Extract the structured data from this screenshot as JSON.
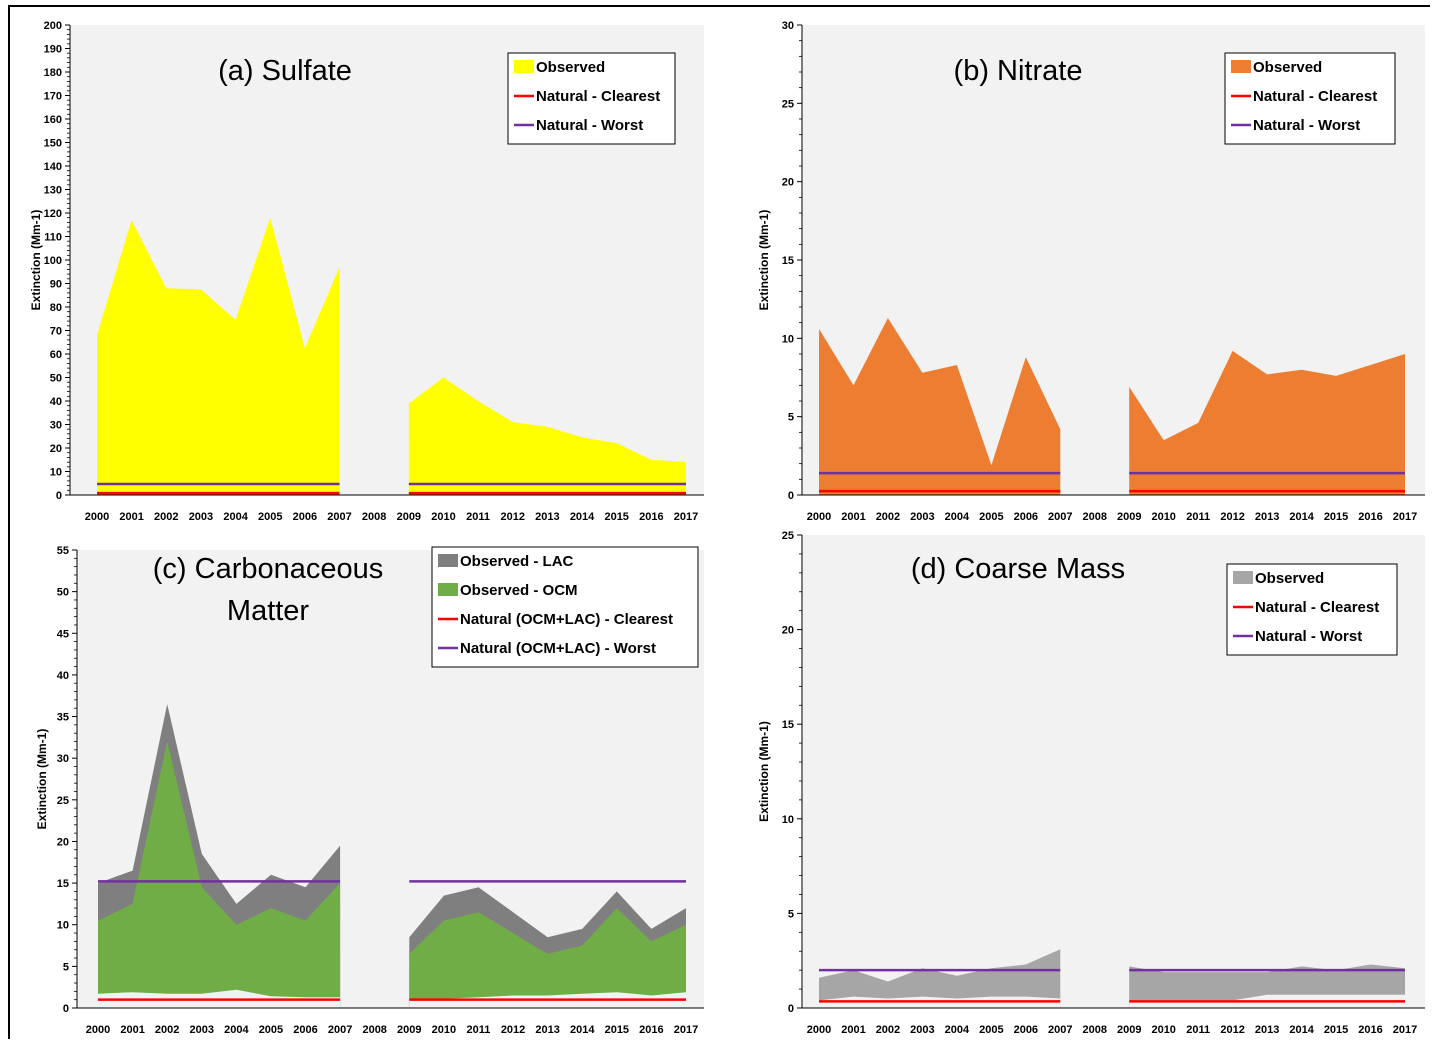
{
  "chart_data": [
    {
      "type": "area",
      "title": "(a) Sulfate",
      "ylabel": "Extinction (Mm-1)",
      "ylim": [
        0,
        200
      ],
      "ytick_step": 10,
      "categories": [
        "2000",
        "2001",
        "2002",
        "2003",
        "2004",
        "2005",
        "2006",
        "2007",
        "2008",
        "2009",
        "2010",
        "2011",
        "2012",
        "2013",
        "2014",
        "2015",
        "2016",
        "2017"
      ],
      "bg_color": "#f2f2f2",
      "legend": [
        {
          "label": "Observed",
          "kind": "area",
          "color": "#ffff00"
        },
        {
          "label": "Natural - Clearest",
          "kind": "line",
          "color": "#ff0000"
        },
        {
          "label": "Natural - Worst",
          "kind": "line",
          "color": "#7030a0"
        }
      ],
      "areas": [
        {
          "name": "Observed",
          "color": "#ffff00",
          "values": [
            68,
            117,
            88,
            87.5,
            74.5,
            118,
            62.5,
            97,
            null,
            39,
            50,
            40,
            31,
            29,
            24.5,
            22,
            15,
            14
          ]
        }
      ],
      "lines": [
        {
          "name": "Natural - Clearest",
          "color": "#ff0000",
          "value": 0.8
        },
        {
          "name": "Natural - Worst",
          "color": "#7030a0",
          "value": 4.7
        }
      ]
    },
    {
      "type": "area",
      "title": "(b) Nitrate",
      "ylabel": "Extinction (Mm-1)",
      "ylim": [
        0,
        30
      ],
      "ytick_step": 5,
      "categories": [
        "2000",
        "2001",
        "2002",
        "2003",
        "2004",
        "2005",
        "2006",
        "2007",
        "2008",
        "2009",
        "2010",
        "2011",
        "2012",
        "2013",
        "2014",
        "2015",
        "2016",
        "2017"
      ],
      "bg_color": "#f2f2f2",
      "legend": [
        {
          "label": "Observed",
          "kind": "area",
          "color": "#ed7d31"
        },
        {
          "label": "Natural - Clearest",
          "kind": "line",
          "color": "#ff0000"
        },
        {
          "label": "Natural - Worst",
          "kind": "line",
          "color": "#7030a0"
        }
      ],
      "areas": [
        {
          "name": "Observed",
          "color": "#ed7d31",
          "values": [
            10.6,
            7,
            11.3,
            7.8,
            8.3,
            1.9,
            8.8,
            4.2,
            null,
            6.9,
            3.5,
            4.6,
            9.2,
            7.7,
            8,
            7.6,
            8.3,
            9
          ]
        }
      ],
      "lines": [
        {
          "name": "Natural - Clearest",
          "color": "#ff0000",
          "value": 0.25
        },
        {
          "name": "Natural - Worst",
          "color": "#7030a0",
          "value": 1.4
        }
      ]
    },
    {
      "type": "area",
      "title": "(c) Carbonaceous Matter",
      "title_lines": [
        "(c) Carbonaceous",
        "Matter"
      ],
      "ylabel": "Extinction (Mm-1)",
      "ylim": [
        0,
        55
      ],
      "ytick_step": 5,
      "categories": [
        "2000",
        "2001",
        "2002",
        "2003",
        "2004",
        "2005",
        "2006",
        "2007",
        "2008",
        "2009",
        "2010",
        "2011",
        "2012",
        "2013",
        "2014",
        "2015",
        "2016",
        "2017"
      ],
      "bg_color": "#f2f2f2",
      "legend": [
        {
          "label": "Observed - LAC",
          "kind": "area",
          "color": "#7f7f7f"
        },
        {
          "label": "Observed - OCM",
          "kind": "area",
          "color": "#70ad47"
        },
        {
          "label": "Natural (OCM+LAC) - Clearest",
          "kind": "line",
          "color": "#ff0000"
        },
        {
          "label": "Natural (OCM+LAC) - Worst",
          "kind": "line",
          "color": "#7030a0"
        }
      ],
      "areas": [
        {
          "name": "Observed - LAC",
          "color": "#7f7f7f",
          "values": [
            15,
            16.5,
            36.5,
            18.5,
            12.5,
            16,
            14.5,
            19.5,
            null,
            8.5,
            13.5,
            14.5,
            11.5,
            8.5,
            9.5,
            14,
            9.5,
            12
          ]
        },
        {
          "name": "Observed - OCM",
          "color": "#70ad47",
          "values": [
            10.5,
            12.5,
            32,
            14.5,
            10,
            12,
            10.5,
            15,
            null,
            6.5,
            10.5,
            11.5,
            9,
            6.5,
            7.5,
            12,
            8,
            10
          ]
        },
        {
          "name": "Observed - clear",
          "color": "#f2f2f2",
          "values": [
            1.7,
            1.9,
            1.7,
            1.7,
            2.2,
            1.4,
            1.3,
            1.3,
            null,
            1.1,
            1.1,
            1.3,
            1.5,
            1.5,
            1.7,
            1.9,
            1.5,
            1.9
          ]
        }
      ],
      "lines": [
        {
          "name": "Natural (OCM+LAC) - Clearest",
          "color": "#ff0000",
          "value": 1.0
        },
        {
          "name": "Natural (OCM+LAC) - Worst",
          "color": "#7030a0",
          "value": 15.2
        }
      ]
    },
    {
      "type": "area",
      "title": "(d) Coarse Mass",
      "ylabel": "Extinction (Mm-1)",
      "ylim": [
        0,
        25
      ],
      "ytick_step": 5,
      "categories": [
        "2000",
        "2001",
        "2002",
        "2003",
        "2004",
        "2005",
        "2006",
        "2007",
        "2008",
        "2009",
        "2010",
        "2011",
        "2012",
        "2013",
        "2014",
        "2015",
        "2016",
        "2017"
      ],
      "bg_color": "#f2f2f2",
      "legend": [
        {
          "label": "Observed",
          "kind": "area",
          "color": "#a6a6a6"
        },
        {
          "label": "Natural - Clearest",
          "kind": "line",
          "color": "#ff0000"
        },
        {
          "label": "Natural - Worst",
          "kind": "line",
          "color": "#7030a0"
        }
      ],
      "areas": [
        {
          "name": "Observed",
          "color": "#a6a6a6",
          "values": [
            1.6,
            2.0,
            1.4,
            2.1,
            1.7,
            2.1,
            2.3,
            3.1,
            null,
            2.2,
            1.9,
            1.9,
            1.9,
            1.9,
            2.2,
            2.0,
            2.3,
            2.1
          ]
        },
        {
          "name": "Observed - clear",
          "color": "#f2f2f2",
          "values": [
            0.4,
            0.6,
            0.5,
            0.6,
            0.5,
            0.6,
            0.6,
            0.5,
            null,
            0.3,
            0.4,
            0.4,
            0.4,
            0.7,
            0.7,
            0.7,
            0.7,
            0.7
          ]
        }
      ],
      "lines": [
        {
          "name": "Natural - Clearest",
          "color": "#ff0000",
          "value": 0.35
        },
        {
          "name": "Natural - Worst",
          "color": "#7030a0",
          "value": 2.0
        }
      ]
    }
  ]
}
